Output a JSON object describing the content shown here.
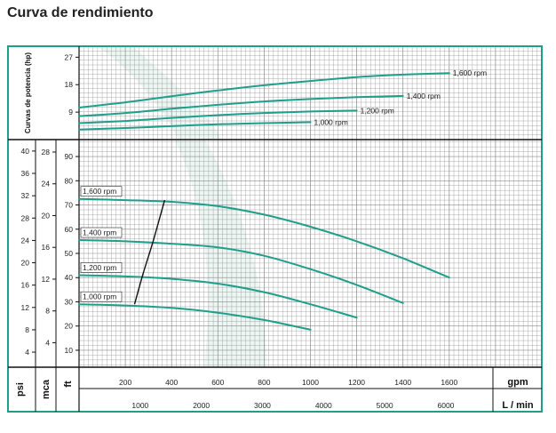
{
  "title": "Curva de rendimiento",
  "colors": {
    "frame": "#1f9e8a",
    "curve": "#1f9e8a",
    "grid": "#8a8a8a",
    "fill": "#dcefe9"
  },
  "chart_data": [
    {
      "type": "line",
      "name": "power",
      "ylabel": "Curvas de potencia (hp)",
      "yticks": [
        9,
        18,
        27
      ],
      "xlim": [
        0,
        2000
      ],
      "ylim": [
        0,
        30.6
      ],
      "series": [
        {
          "name": "1,600 rpm",
          "x": [
            0,
            200,
            400,
            600,
            800,
            1000,
            1200,
            1400,
            1600
          ],
          "values": [
            10.5,
            12.2,
            14.2,
            16.1,
            17.8,
            19.2,
            20.5,
            21.3,
            21.8
          ]
        },
        {
          "name": "1,400 rpm",
          "x": [
            0,
            200,
            400,
            600,
            800,
            1000,
            1200,
            1400
          ],
          "values": [
            7.7,
            8.7,
            10.1,
            11.4,
            12.5,
            13.3,
            13.9,
            14.3
          ]
        },
        {
          "name": "1,200 rpm",
          "x": [
            0,
            200,
            400,
            600,
            800,
            1000,
            1200
          ],
          "values": [
            5.4,
            6.1,
            7.1,
            8.0,
            8.7,
            9.2,
            9.5
          ]
        },
        {
          "name": "1,000 rpm",
          "x": [
            0,
            200,
            400,
            600,
            800,
            1000
          ],
          "values": [
            3.3,
            3.8,
            4.4,
            5.0,
            5.4,
            5.7
          ]
        }
      ]
    },
    {
      "type": "line",
      "name": "head",
      "xlabel_gpm": "gpm",
      "xlabel_lmin": "L / min",
      "xticks_gpm": [
        200,
        400,
        600,
        800,
        1000,
        1200,
        1400,
        1600
      ],
      "xticks_lmin": [
        1000,
        2000,
        3000,
        4000,
        5000,
        6000
      ],
      "ylabel_psi": "psi",
      "ylabel_mca": "mca",
      "ylabel_ft": "ft",
      "yticks_ft": [
        10,
        20,
        30,
        40,
        50,
        60,
        70,
        80,
        90
      ],
      "yticks_mca": [
        4,
        8,
        12,
        16,
        20,
        24,
        28
      ],
      "yticks_psi": [
        4,
        8,
        12,
        16,
        20,
        24,
        28,
        32,
        36,
        40
      ],
      "xlim": [
        0,
        2000
      ],
      "ylim": [
        3,
        97
      ],
      "series": [
        {
          "name": "1,600 rpm",
          "x": [
            0,
            200,
            400,
            600,
            800,
            1000,
            1200,
            1400,
            1600
          ],
          "values": [
            72.5,
            72,
            71.3,
            69.5,
            66,
            61,
            55,
            48,
            40
          ]
        },
        {
          "name": "1,400 rpm",
          "x": [
            0,
            200,
            400,
            600,
            800,
            1000,
            1200,
            1400
          ],
          "values": [
            55.5,
            55,
            54,
            52.5,
            49,
            43.5,
            37,
            29.5
          ]
        },
        {
          "name": "1,200 rpm",
          "x": [
            0,
            200,
            400,
            600,
            800,
            1000,
            1200
          ],
          "values": [
            41,
            40.5,
            39.5,
            37.5,
            34,
            29,
            23.5
          ]
        },
        {
          "name": "1,000 rpm",
          "x": [
            0,
            200,
            400,
            600,
            800,
            1000
          ],
          "values": [
            29,
            28.5,
            27.5,
            25.5,
            22.5,
            18.5
          ]
        }
      ],
      "limit_curve": {
        "x": [
          240,
          275,
          320,
          370
        ],
        "values": [
          29,
          41,
          55,
          72
        ]
      }
    }
  ]
}
